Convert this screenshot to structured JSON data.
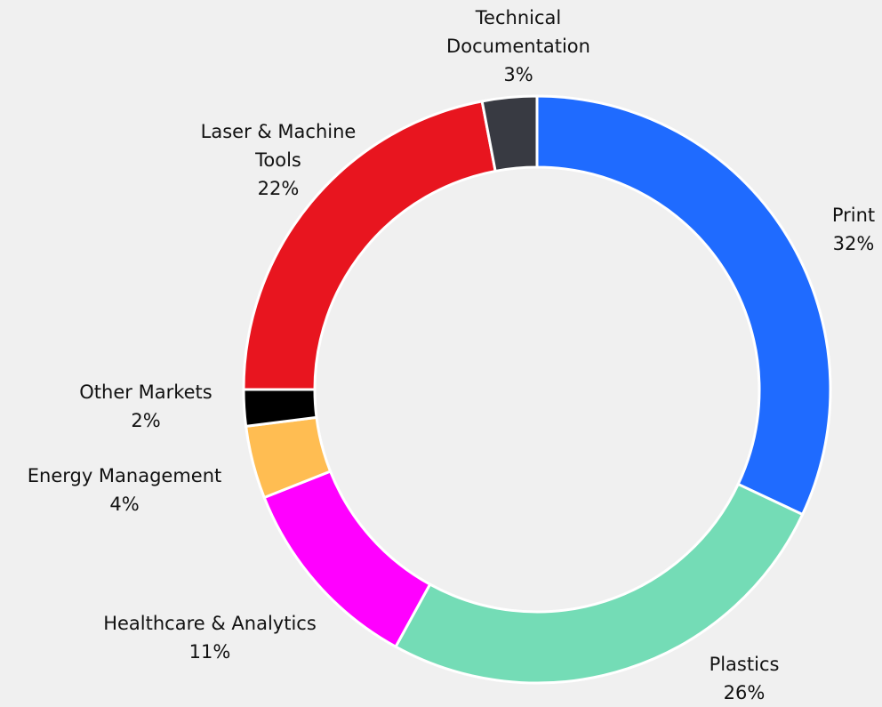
{
  "chart_data": {
    "type": "donut",
    "categories": [
      "Print",
      "Plastics",
      "Healthcare & Analytics",
      "Energy Management",
      "Other Markets",
      "Laser & Machine Tools",
      "Technical Documentation"
    ],
    "values": [
      32,
      26,
      11,
      4,
      2,
      22,
      3
    ],
    "value_labels": [
      "32%",
      "26%",
      "11%",
      "4%",
      "2%",
      "22%",
      "3%"
    ],
    "colors": [
      "#1f6bff",
      "#74dcb6",
      "#ff00ff",
      "#ffbd52",
      "#000000",
      "#e8151f",
      "#383a42"
    ]
  }
}
